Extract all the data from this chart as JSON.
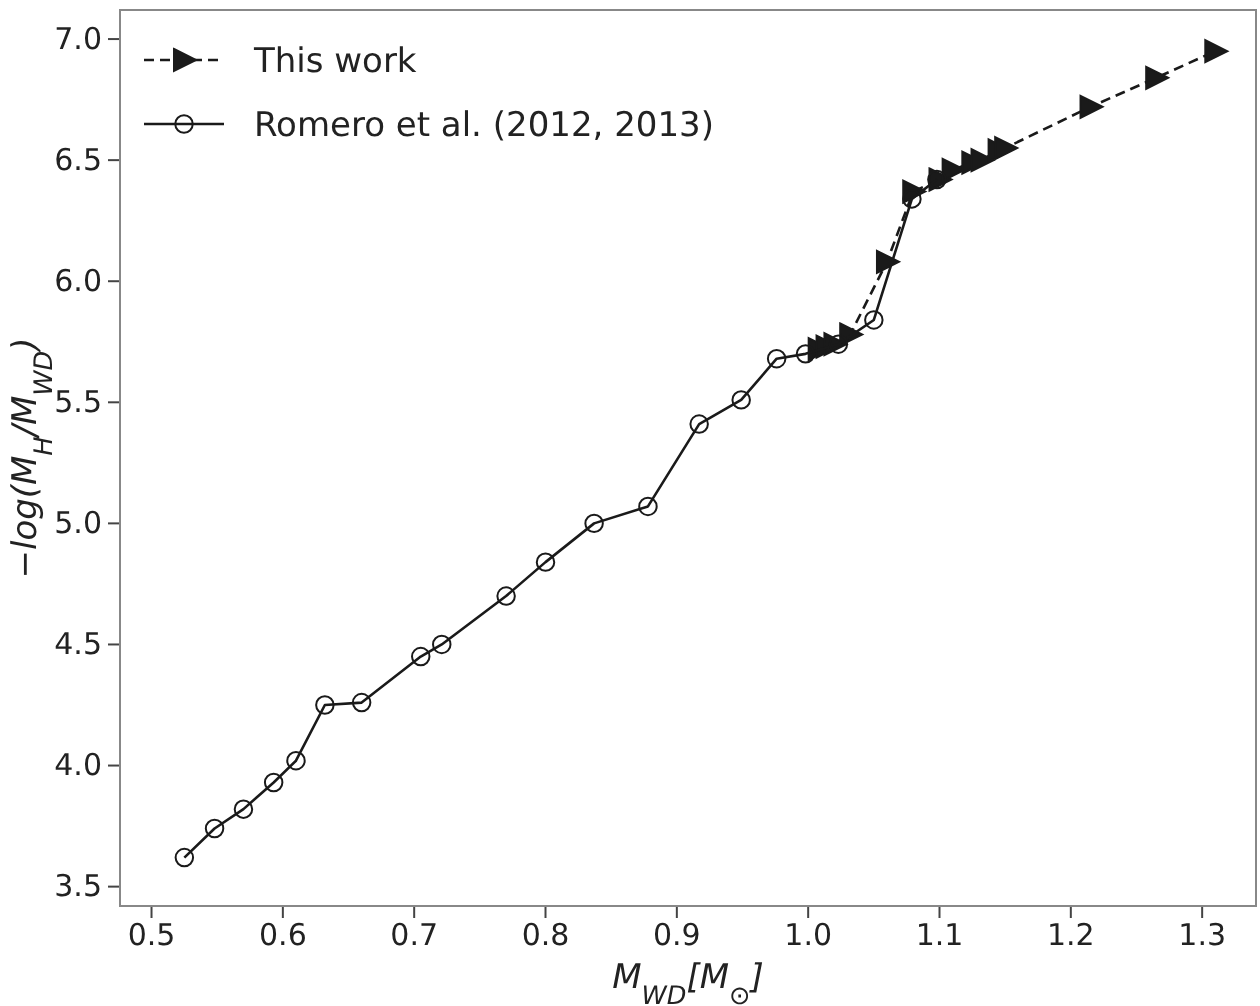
{
  "chart_data": {
    "type": "line",
    "xlabel": "M$_{WD}$[M$_{⊙}$]",
    "ylabel": "−log(M$_{H}$/M$_{WD}$)",
    "xlim": [
      0.476,
      1.341
    ],
    "ylim": [
      3.42,
      7.12
    ],
    "xticks": [
      0.5,
      0.6,
      0.7,
      0.8,
      0.9,
      {
        "value": 1,
        "label": "1.0"
      },
      1.1,
      1.2,
      1.3
    ],
    "yticks": [
      3.5,
      {
        "value": 4,
        "label": "4.0"
      },
      4.5,
      {
        "value": 5,
        "label": "5.0"
      },
      5.5,
      {
        "value": 6,
        "label": "6.0"
      },
      6.5,
      {
        "value": 7,
        "label": "7.0"
      }
    ],
    "grid": false,
    "legend": "top left",
    "series": [
      {
        "name": "This work",
        "color": "#1a1a1a",
        "marker": "triangle",
        "line_style": "dashed",
        "x": [
          1.008,
          1.014,
          1.02,
          1.032,
          1.06,
          1.08,
          1.1,
          1.11,
          1.125,
          1.132,
          1.145,
          1.15,
          1.215,
          1.265,
          1.31
        ],
        "values": [
          5.72,
          5.73,
          5.74,
          5.78,
          6.08,
          6.37,
          6.42,
          6.46,
          6.49,
          6.5,
          6.54,
          6.55,
          6.72,
          6.84,
          6.95
        ]
      },
      {
        "name": "Romero et al. (2012, 2013)",
        "color": "#1a1a1a",
        "marker": "circle",
        "line_style": "solid",
        "x": [
          0.525,
          0.548,
          0.57,
          0.593,
          0.61,
          0.632,
          0.66,
          0.705,
          0.721,
          0.77,
          0.8,
          0.837,
          0.878,
          0.917,
          0.949,
          0.976,
          0.998,
          1.023,
          1.05,
          1.079,
          1.098
        ],
        "values": [
          3.62,
          3.74,
          3.82,
          3.93,
          4.02,
          4.25,
          4.26,
          4.45,
          4.5,
          4.7,
          4.84,
          5.0,
          5.07,
          5.41,
          5.51,
          5.68,
          5.7,
          5.74,
          5.84,
          6.34,
          6.42
        ]
      }
    ]
  }
}
